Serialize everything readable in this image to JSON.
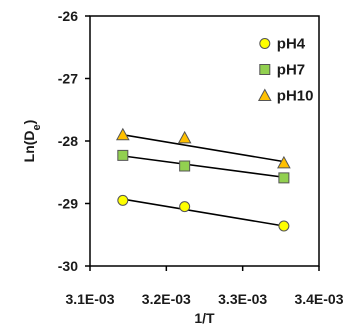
{
  "chart_data": {
    "type": "scatter",
    "xlabel": "1/T",
    "ylabel_main": "Ln(D",
    "ylabel_sub": "e",
    "ylabel_close": ")",
    "xlim": [
      0.0031,
      0.0034
    ],
    "ylim": [
      -30,
      -26
    ],
    "x_ticks": [
      0.0031,
      0.0032,
      0.0033,
      0.0034
    ],
    "x_tick_labels": [
      "3.1E-03",
      "3.2E-03",
      "3.3E-03",
      "3.4E-03"
    ],
    "y_ticks": [
      -30,
      -29,
      -28,
      -27,
      -26
    ],
    "y_tick_labels": [
      "-30",
      "-29",
      "-28",
      "-27",
      "-26"
    ],
    "grid": false,
    "legend_position": "top-right",
    "series": [
      {
        "name": "pH4",
        "marker": "circle",
        "color": "#ffff00",
        "x": [
          0.003143,
          0.003224,
          0.003354
        ],
        "y": [
          -28.95,
          -29.05,
          -29.36
        ],
        "trend": [
          -28.93,
          -29.36
        ]
      },
      {
        "name": "pH7",
        "marker": "square",
        "color": "#92d050",
        "x": [
          0.003143,
          0.003224,
          0.003354
        ],
        "y": [
          -28.23,
          -28.4,
          -28.59
        ],
        "trend": [
          -28.24,
          -28.58
        ]
      },
      {
        "name": "pH10",
        "marker": "triangle",
        "color": "#ffc000",
        "x": [
          0.003143,
          0.003224,
          0.003354
        ],
        "y": [
          -27.9,
          -27.95,
          -28.35
        ],
        "trend": [
          -27.9,
          -28.33
        ]
      }
    ]
  }
}
